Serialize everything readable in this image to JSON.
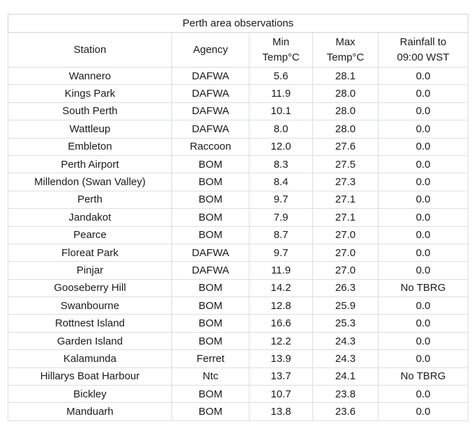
{
  "colors": {
    "background": "#ffffff",
    "text": "#1a1a1a",
    "muted_text": "#b7bdc1",
    "border_inner": "#dadfe2",
    "border_outer": "#d4d4d4"
  },
  "table": {
    "title": "Perth area observations",
    "columns": [
      {
        "line1": "Station",
        "line2": ""
      },
      {
        "line1": "Agency",
        "line2": ""
      },
      {
        "line1": "Min",
        "line2": "Temp°C"
      },
      {
        "line1": "Max",
        "line2": "Temp°C"
      },
      {
        "line1": "Rainfall to",
        "line2": "09:00 WST"
      }
    ],
    "no_data_label": "No TBRG"
  },
  "chart_data": {
    "type": "table",
    "title": "Perth area observations",
    "columns": [
      "Station",
      "Agency",
      "Min Temp°C",
      "Max Temp°C",
      "Rainfall to 09:00 WST"
    ],
    "rows": [
      [
        "Wannero",
        "DAFWA",
        5.6,
        28.1,
        "0.0"
      ],
      [
        "Kings Park",
        "DAFWA",
        11.9,
        28.0,
        "0.0"
      ],
      [
        "South Perth",
        "DAFWA",
        10.1,
        28.0,
        "0.0"
      ],
      [
        "Wattleup",
        "DAFWA",
        8.0,
        28.0,
        "0.0"
      ],
      [
        "Embleton",
        "Raccoon",
        12.0,
        27.6,
        "0.0"
      ],
      [
        "Perth Airport",
        "BOM",
        8.3,
        27.5,
        "0.0"
      ],
      [
        "Millendon (Swan Valley)",
        "BOM",
        8.4,
        27.3,
        "0.0"
      ],
      [
        "Perth",
        "BOM",
        9.7,
        27.1,
        "0.0"
      ],
      [
        "Jandakot",
        "BOM",
        7.9,
        27.1,
        "0.0"
      ],
      [
        "Pearce",
        "BOM",
        8.7,
        27.0,
        "0.0"
      ],
      [
        "Floreat Park",
        "DAFWA",
        9.7,
        27.0,
        "0.0"
      ],
      [
        "Pinjar",
        "DAFWA",
        11.9,
        27.0,
        "0.0"
      ],
      [
        "Gooseberry Hill",
        "BOM",
        14.2,
        26.3,
        "No TBRG"
      ],
      [
        "Swanbourne",
        "BOM",
        12.8,
        25.9,
        "0.0"
      ],
      [
        "Rottnest Island",
        "BOM",
        16.6,
        25.3,
        "0.0"
      ],
      [
        "Garden Island",
        "BOM",
        12.2,
        24.3,
        "0.0"
      ],
      [
        "Kalamunda",
        "Ferret",
        13.9,
        24.3,
        "0.0"
      ],
      [
        "Hillarys Boat Harbour",
        "Ntc",
        13.7,
        24.1,
        "No TBRG"
      ],
      [
        "Bickley",
        "BOM",
        10.7,
        23.8,
        "0.0"
      ],
      [
        "Manduarh",
        "BOM",
        13.8,
        23.6,
        "0.0"
      ]
    ]
  }
}
